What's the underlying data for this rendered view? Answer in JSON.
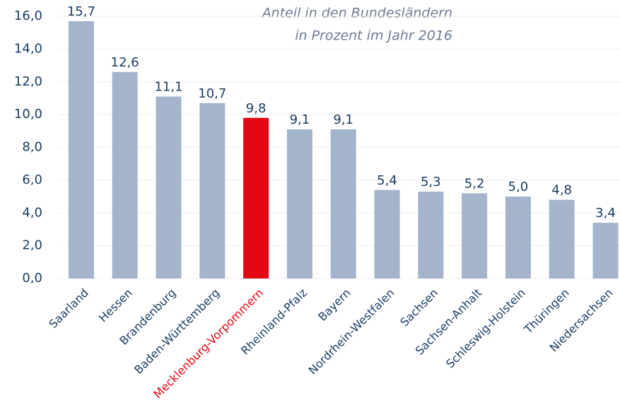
{
  "chart_data": {
    "type": "bar",
    "title": "Anteil in den Bundesländern",
    "subtitle": "in Prozent im Jahr 2016",
    "categories": [
      "Saarland",
      "Hessen",
      "Brandenburg",
      "Baden-Württemberg",
      "Mecklenburg-Vorpommern",
      "Rheinland-Pfalz",
      "Bayern",
      "Nordrhein-Westfalen",
      "Sachsen",
      "Sachsen-Anhalt",
      "Schleswig-Holstein",
      "Thüringen",
      "Niedersachsen"
    ],
    "values": [
      15.7,
      12.6,
      11.1,
      10.7,
      9.8,
      9.1,
      9.1,
      5.4,
      5.3,
      5.2,
      5.0,
      4.8,
      3.4
    ],
    "value_labels": [
      "15,7",
      "12,6",
      "11,1",
      "10,7",
      "9,8",
      "9,1",
      "9,1",
      "5,4",
      "5,3",
      "5,2",
      "5,0",
      "4,8",
      "3,4"
    ],
    "color": "#a3b4cc",
    "highlight": 4,
    "highlight_color": "#e30613",
    "ylim": [
      0,
      16
    ],
    "yticks": [
      {
        "value": 0,
        "label": "0,0"
      },
      {
        "value": 2,
        "label": "2,0"
      },
      {
        "value": 4,
        "label": "4,0"
      },
      {
        "value": 6,
        "label": "6,0"
      },
      {
        "value": 8,
        "label": "8,0"
      },
      {
        "value": 10,
        "label": "10,0"
      },
      {
        "value": 12,
        "label": "12,0"
      },
      {
        "value": 14,
        "label": "14,0"
      },
      {
        "value": 16,
        "label": "16,0"
      }
    ],
    "grid": true
  }
}
